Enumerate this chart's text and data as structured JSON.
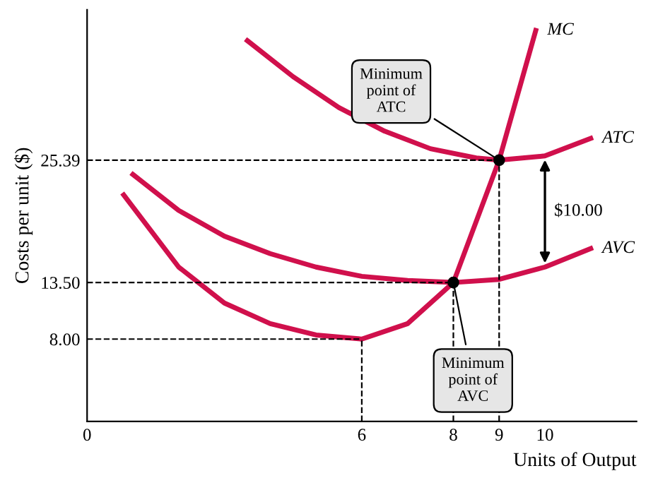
{
  "chart_data": {
    "type": "line",
    "xlabel": "Units of Output",
    "ylabel": "Costs per unit ($)",
    "x": [
      0.8,
      2,
      3,
      4,
      5,
      6,
      7,
      8,
      9,
      9.8
    ],
    "series": [
      {
        "name": "MC",
        "color": "#d0104c",
        "values": [
          22,
          15,
          11.5,
          9.5,
          8.4,
          8.0,
          9.5,
          13.5,
          25.39,
          38
        ]
      },
      {
        "name": "ATC",
        "color": "#d0104c",
        "x": [
          3.5,
          4.5,
          5.5,
          6.5,
          7.5,
          8.5,
          9,
          10,
          11
        ],
        "values": [
          37,
          33.5,
          30.5,
          28.2,
          26.5,
          25.6,
          25.39,
          25.8,
          27.5
        ]
      },
      {
        "name": "AVC",
        "color": "#d0104c",
        "x": [
          1,
          2,
          3,
          4,
          5,
          6,
          7,
          8,
          9,
          10,
          11
        ],
        "values": [
          24,
          20.5,
          18,
          16.3,
          15,
          14.1,
          13.7,
          13.5,
          13.8,
          15,
          16.8
        ]
      }
    ],
    "xlim": [
      0,
      12
    ],
    "ylim": [
      0,
      40
    ],
    "xticks": [
      0,
      6,
      8,
      9,
      10
    ],
    "yticks": [
      {
        "value": 8,
        "label": "8.00"
      },
      {
        "value": 13.5,
        "label": "13.50"
      },
      {
        "value": 25.39,
        "label": "25.39"
      }
    ],
    "ref_lines": [
      {
        "axis": "y",
        "value": 25.39,
        "line_style": "dashed",
        "color": "#000000"
      },
      {
        "axis": "y",
        "value": 13.5,
        "line_style": "dashed",
        "color": "#000000"
      },
      {
        "axis": "y",
        "value": 8,
        "line_style": "dashed",
        "color": "#000000"
      },
      {
        "axis": "x",
        "value": 9,
        "line_style": "dashed",
        "color": "#000000"
      },
      {
        "axis": "x",
        "value": 8,
        "line_style": "dashed",
        "color": "#000000"
      },
      {
        "axis": "x",
        "value": 6,
        "line_style": "dashed",
        "color": "#000000"
      }
    ],
    "annotations": [
      {
        "text": "Minimum\npoint of\nATC",
        "x": 9,
        "y": 25.39
      },
      {
        "text": "Minimum\npoint of\nAVC",
        "x": 8,
        "y": 13.5
      },
      "$10.00"
    ],
    "grid": false,
    "legend": false,
    "marker": "none",
    "line_style": "solid"
  }
}
